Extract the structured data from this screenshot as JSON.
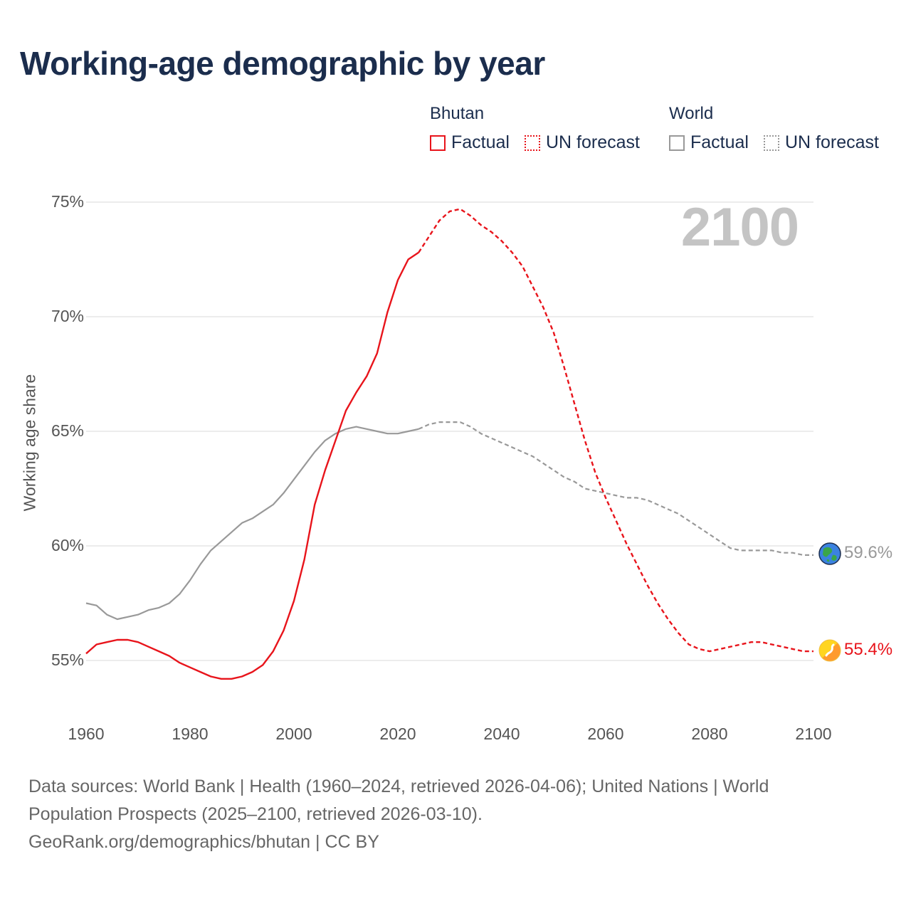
{
  "title": "Working-age demographic by year",
  "legend": {
    "groups": [
      {
        "name": "Bhutan",
        "color": "#e8141b",
        "items": [
          {
            "label": "Factual",
            "style": "solid"
          },
          {
            "label": "UN forecast",
            "style": "dotted"
          }
        ]
      },
      {
        "name": "World",
        "color": "#999999",
        "items": [
          {
            "label": "Factual",
            "style": "solid"
          },
          {
            "label": "UN forecast",
            "style": "dotted"
          }
        ]
      }
    ]
  },
  "year_overlay": "2100",
  "end_labels": {
    "world": "59.6%",
    "bhutan": "55.4%"
  },
  "icons": {
    "world": "globe-icon",
    "bhutan": "bhutan-flag-icon"
  },
  "footer": {
    "sources": "Data sources: World Bank | Health (1960–2024, retrieved 2026-04-06); United Nations | World Population Prospects (2025–2100, retrieved 2026-03-10).",
    "credit": "GeoRank.org/demographics/bhutan | CC BY"
  },
  "chart_data": {
    "type": "line",
    "title": "Working-age demographic by year",
    "xlabel": "",
    "ylabel": "Working age share",
    "xlim": [
      1960,
      2100
    ],
    "ylim": [
      53,
      76
    ],
    "x_ticks": [
      1960,
      1980,
      2000,
      2020,
      2040,
      2060,
      2080,
      2100
    ],
    "x_tick_labels": [
      "1960",
      "1980",
      "2000",
      "2020",
      "2040",
      "2060",
      "2080",
      "2100"
    ],
    "y_ticks": [
      55,
      60,
      65,
      70,
      75
    ],
    "y_tick_labels": [
      "55%",
      "60%",
      "65%",
      "70%",
      "75%"
    ],
    "grid": true,
    "legend_position": "top-right",
    "series": [
      {
        "name": "Bhutan",
        "segment": "Factual",
        "color": "#e8141b",
        "dash": "solid",
        "x": [
          1960,
          1962,
          1964,
          1966,
          1968,
          1970,
          1972,
          1974,
          1976,
          1978,
          1980,
          1982,
          1984,
          1986,
          1988,
          1990,
          1992,
          1994,
          1996,
          1998,
          2000,
          2002,
          2004,
          2006,
          2008,
          2010,
          2012,
          2014,
          2016,
          2018,
          2020,
          2022,
          2024
        ],
        "y": [
          55.3,
          55.7,
          55.8,
          55.9,
          55.9,
          55.8,
          55.6,
          55.4,
          55.2,
          54.9,
          54.7,
          54.5,
          54.3,
          54.2,
          54.2,
          54.3,
          54.5,
          54.8,
          55.4,
          56.3,
          57.6,
          59.4,
          61.8,
          63.3,
          64.6,
          65.9,
          66.7,
          67.4,
          68.4,
          70.2,
          71.6,
          72.5,
          72.8
        ]
      },
      {
        "name": "Bhutan",
        "segment": "UN forecast",
        "color": "#e8141b",
        "dash": "dotted",
        "x": [
          2024,
          2026,
          2028,
          2030,
          2032,
          2034,
          2036,
          2038,
          2040,
          2042,
          2044,
          2046,
          2048,
          2050,
          2052,
          2054,
          2056,
          2058,
          2060,
          2062,
          2064,
          2066,
          2068,
          2070,
          2072,
          2074,
          2076,
          2078,
          2080,
          2082,
          2084,
          2086,
          2088,
          2090,
          2092,
          2094,
          2096,
          2098,
          2100
        ],
        "y": [
          72.8,
          73.5,
          74.2,
          74.6,
          74.7,
          74.4,
          74.0,
          73.7,
          73.3,
          72.8,
          72.2,
          71.3,
          70.4,
          69.3,
          67.8,
          66.2,
          64.6,
          63.2,
          62.1,
          61.1,
          60.1,
          59.2,
          58.3,
          57.5,
          56.8,
          56.2,
          55.7,
          55.5,
          55.4,
          55.5,
          55.6,
          55.7,
          55.8,
          55.8,
          55.7,
          55.6,
          55.5,
          55.4,
          55.4
        ]
      },
      {
        "name": "World",
        "segment": "Factual",
        "color": "#999999",
        "dash": "solid",
        "x": [
          1960,
          1962,
          1964,
          1966,
          1968,
          1970,
          1972,
          1974,
          1976,
          1978,
          1980,
          1982,
          1984,
          1986,
          1988,
          1990,
          1992,
          1994,
          1996,
          1998,
          2000,
          2002,
          2004,
          2006,
          2008,
          2010,
          2012,
          2014,
          2016,
          2018,
          2020,
          2022,
          2024
        ],
        "y": [
          57.5,
          57.4,
          57.0,
          56.8,
          56.9,
          57.0,
          57.2,
          57.3,
          57.5,
          57.9,
          58.5,
          59.2,
          59.8,
          60.2,
          60.6,
          61.0,
          61.2,
          61.5,
          61.8,
          62.3,
          62.9,
          63.5,
          64.1,
          64.6,
          64.9,
          65.1,
          65.2,
          65.1,
          65.0,
          64.9,
          64.9,
          65.0,
          65.1
        ]
      },
      {
        "name": "World",
        "segment": "UN forecast",
        "color": "#999999",
        "dash": "dotted",
        "x": [
          2024,
          2026,
          2028,
          2030,
          2032,
          2034,
          2036,
          2038,
          2040,
          2042,
          2044,
          2046,
          2048,
          2050,
          2052,
          2054,
          2056,
          2058,
          2060,
          2062,
          2064,
          2066,
          2068,
          2070,
          2072,
          2074,
          2076,
          2078,
          2080,
          2082,
          2084,
          2086,
          2088,
          2090,
          2092,
          2094,
          2096,
          2098,
          2100
        ],
        "y": [
          65.1,
          65.3,
          65.4,
          65.4,
          65.4,
          65.2,
          64.9,
          64.7,
          64.5,
          64.3,
          64.1,
          63.9,
          63.6,
          63.3,
          63.0,
          62.8,
          62.5,
          62.4,
          62.3,
          62.2,
          62.1,
          62.1,
          62.0,
          61.8,
          61.6,
          61.4,
          61.1,
          60.8,
          60.5,
          60.2,
          59.9,
          59.8,
          59.8,
          59.8,
          59.8,
          59.7,
          59.7,
          59.6,
          59.6
        ]
      }
    ]
  }
}
